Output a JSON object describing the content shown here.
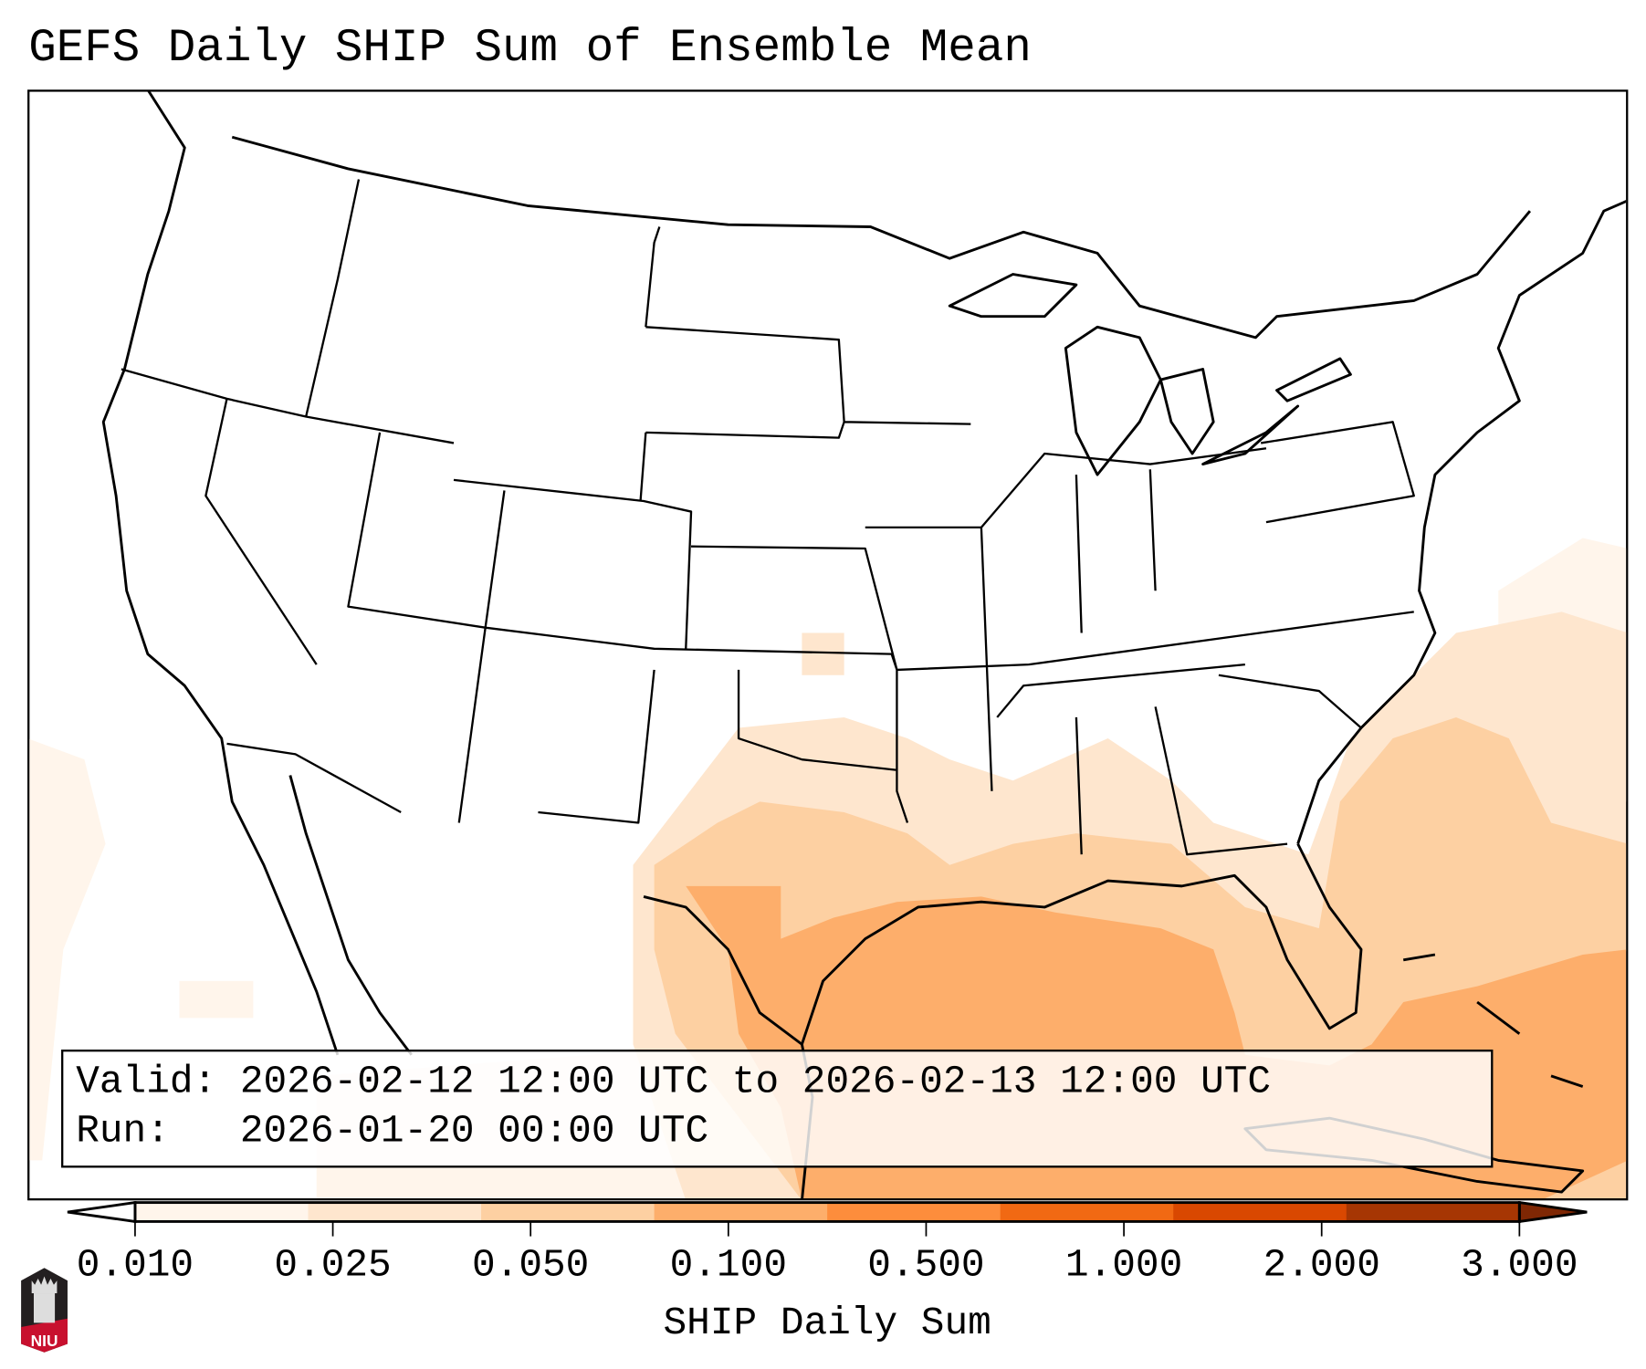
{
  "title": "GEFS Daily SHIP Sum of Ensemble Mean",
  "info": {
    "valid_label": "Valid:",
    "valid_value": "2026-02-12 12:00 UTC to 2026-02-13 12:00 UTC",
    "run_label": "Run:",
    "run_value": "2026-01-20 00:00 UTC"
  },
  "colorbar": {
    "label": "SHIP Daily Sum",
    "ticks": [
      "0.010",
      "0.025",
      "0.050",
      "0.100",
      "0.500",
      "1.000",
      "2.000",
      "3.000"
    ],
    "colors": [
      "#fff5eb",
      "#fee6ce",
      "#fdd0a2",
      "#fdae6b",
      "#fd8d3c",
      "#f16913",
      "#d94801",
      "#a63603"
    ],
    "under_color": "#ffffff",
    "over_color": "#7f2704"
  },
  "logo": {
    "text": "NIU"
  }
}
